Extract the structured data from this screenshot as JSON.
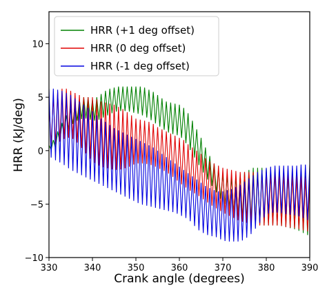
{
  "chart_data": {
    "type": "line",
    "title": "",
    "xlabel": "Crank angle (degrees)",
    "ylabel": "HRR (kJ/deg)",
    "xlim": [
      330,
      390
    ],
    "ylim": [
      -10,
      13
    ],
    "xticks": [
      330,
      340,
      350,
      360,
      370,
      380,
      390
    ],
    "yticks": [
      -10,
      -5,
      0,
      5,
      10
    ],
    "grid": false,
    "legend_position": "top-left",
    "series": [
      {
        "name": "HRR (+1 deg offset)",
        "color": "#008000",
        "x": [
          330,
          331,
          332,
          333,
          334,
          335,
          336,
          337,
          338,
          339,
          340,
          341,
          342,
          343,
          344,
          345,
          346,
          347,
          348,
          349,
          350,
          351,
          352,
          353,
          354,
          355,
          356,
          357,
          358,
          359,
          360,
          361,
          362,
          363,
          364,
          365,
          366,
          367,
          368,
          369,
          370,
          371,
          372,
          373,
          374,
          375,
          376,
          377,
          378,
          379,
          380,
          381,
          382,
          383,
          384,
          385,
          386,
          387,
          388,
          389,
          390
        ],
        "upper": [
          0.5,
          1.0,
          1.8,
          2.6,
          3.3,
          3.9,
          4.4,
          4.8,
          5.0,
          5.0,
          4.8,
          5.0,
          5.3,
          5.6,
          5.8,
          5.9,
          6.0,
          6.0,
          6.0,
          6.0,
          6.0,
          6.0,
          5.9,
          5.7,
          5.5,
          5.2,
          4.9,
          4.6,
          4.5,
          4.4,
          4.3,
          4.0,
          3.5,
          2.8,
          2.0,
          1.2,
          0.3,
          -0.5,
          -1.2,
          -1.8,
          -2.2,
          -2.4,
          -2.5,
          -2.4,
          -2.2,
          -2.0,
          -1.8,
          -1.6,
          -1.6,
          -1.6,
          -1.7,
          -1.8,
          -1.8,
          -1.8,
          -1.8,
          -1.9,
          -1.9,
          -2.0,
          -2.1,
          -2.3,
          -2.5
        ],
        "lower": [
          0.2,
          0.0,
          0.5,
          1.2,
          1.8,
          2.3,
          2.7,
          2.9,
          3.0,
          3.0,
          2.8,
          2.8,
          3.0,
          3.2,
          3.4,
          3.6,
          3.7,
          3.7,
          3.7,
          3.6,
          3.5,
          3.4,
          3.2,
          3.0,
          2.7,
          2.4,
          2.1,
          1.8,
          1.6,
          1.5,
          1.4,
          1.0,
          0.4,
          -0.3,
          -1.0,
          -1.7,
          -2.4,
          -3.0,
          -3.6,
          -4.2,
          -4.8,
          -5.2,
          -5.6,
          -6.0,
          -6.3,
          -6.5,
          -6.6,
          -6.8,
          -6.9,
          -7.0,
          -7.0,
          -7.0,
          -7.0,
          -7.0,
          -7.1,
          -7.2,
          -7.3,
          -7.4,
          -7.6,
          -7.8,
          -8.0
        ]
      },
      {
        "name": "HRR (0 deg offset)",
        "color": "#e00000",
        "x": [
          330,
          331,
          332,
          333,
          334,
          335,
          336,
          337,
          338,
          339,
          340,
          341,
          342,
          343,
          344,
          345,
          346,
          347,
          348,
          349,
          350,
          351,
          352,
          353,
          354,
          355,
          356,
          357,
          358,
          359,
          360,
          361,
          362,
          363,
          364,
          365,
          366,
          367,
          368,
          369,
          370,
          371,
          372,
          373,
          374,
          375,
          376,
          377,
          378,
          379,
          380,
          381,
          382,
          383,
          384,
          385,
          386,
          387,
          388,
          389,
          390
        ],
        "upper": [
          4.5,
          5.0,
          5.5,
          5.8,
          5.8,
          5.6,
          5.4,
          5.2,
          5.0,
          5.0,
          5.0,
          4.8,
          4.6,
          4.5,
          4.4,
          4.3,
          4.1,
          3.9,
          3.6,
          3.3,
          3.0,
          2.9,
          2.8,
          2.7,
          2.5,
          2.2,
          2.0,
          1.8,
          1.6,
          1.4,
          1.2,
          1.0,
          0.6,
          0.3,
          0.0,
          -0.3,
          -0.7,
          -1.0,
          -1.2,
          -1.4,
          -1.6,
          -1.7,
          -1.8,
          -1.9,
          -2.0,
          -2.0,
          -2.0,
          -2.0,
          -2.0,
          -2.0,
          -2.0,
          -2.0,
          -2.0,
          -2.0,
          -2.0,
          -2.1,
          -2.2,
          -2.3,
          -2.4,
          -2.5,
          -2.6
        ],
        "lower": [
          0.8,
          0.5,
          0.7,
          1.0,
          1.2,
          1.2,
          1.0,
          0.5,
          0.0,
          -0.5,
          -1.0,
          -1.3,
          -1.5,
          -1.6,
          -1.7,
          -1.8,
          -1.8,
          -1.7,
          -1.6,
          -1.4,
          -1.2,
          -1.2,
          -1.2,
          -1.3,
          -1.4,
          -1.6,
          -1.8,
          -2.0,
          -2.3,
          -2.6,
          -3.0,
          -3.3,
          -3.6,
          -3.9,
          -4.1,
          -4.4,
          -4.7,
          -5.0,
          -5.3,
          -5.5,
          -5.8,
          -6.0,
          -6.2,
          -6.4,
          -6.6,
          -6.7,
          -6.8,
          -6.9,
          -7.0,
          -7.0,
          -7.0,
          -7.0,
          -7.0,
          -7.0,
          -7.1,
          -7.2,
          -7.2,
          -7.3,
          -7.4,
          -7.5,
          -7.6
        ]
      },
      {
        "name": "HRR (-1 deg offset)",
        "color": "#0000e0",
        "x": [
          330,
          331,
          332,
          333,
          334,
          335,
          336,
          337,
          338,
          339,
          340,
          341,
          342,
          343,
          344,
          345,
          346,
          347,
          348,
          349,
          350,
          351,
          352,
          353,
          354,
          355,
          356,
          357,
          358,
          359,
          360,
          361,
          362,
          363,
          364,
          365,
          366,
          367,
          368,
          369,
          370,
          371,
          372,
          373,
          374,
          375,
          376,
          377,
          378,
          379,
          380,
          381,
          382,
          383,
          384,
          385,
          386,
          387,
          388,
          389,
          390
        ],
        "upper": [
          5.8,
          5.8,
          5.7,
          5.6,
          5.4,
          5.2,
          4.9,
          4.6,
          4.3,
          4.0,
          3.7,
          3.3,
          3.0,
          2.7,
          2.4,
          2.1,
          1.9,
          1.7,
          1.5,
          1.3,
          1.1,
          0.9,
          0.7,
          0.5,
          0.3,
          0.0,
          -0.3,
          -0.6,
          -0.9,
          -1.2,
          -1.5,
          -1.8,
          -2.1,
          -2.4,
          -2.7,
          -3.0,
          -3.3,
          -3.5,
          -3.7,
          -3.8,
          -3.8,
          -3.7,
          -3.6,
          -3.4,
          -3.2,
          -2.9,
          -2.6,
          -2.3,
          -2.0,
          -1.8,
          -1.6,
          -1.5,
          -1.4,
          -1.4,
          -1.4,
          -1.4,
          -1.4,
          -1.4,
          -1.3,
          -1.3,
          -1.3
        ],
        "lower": [
          -0.5,
          -0.8,
          -1.0,
          -1.2,
          -1.5,
          -1.8,
          -2.0,
          -2.2,
          -2.4,
          -2.6,
          -2.8,
          -3.0,
          -3.2,
          -3.4,
          -3.6,
          -3.8,
          -4.0,
          -4.2,
          -4.4,
          -4.6,
          -4.8,
          -5.0,
          -5.1,
          -5.2,
          -5.3,
          -5.4,
          -5.5,
          -5.6,
          -5.7,
          -5.8,
          -6.0,
          -6.2,
          -6.4,
          -6.8,
          -7.3,
          -7.6,
          -7.8,
          -8.0,
          -8.0,
          -8.2,
          -8.4,
          -8.5,
          -8.5,
          -8.5,
          -8.5,
          -8.3,
          -8.0,
          -7.6,
          -7.0,
          -6.5,
          -6.0,
          -5.8,
          -5.8,
          -5.8,
          -5.9,
          -6.0,
          -6.0,
          -6.1,
          -6.2,
          -6.4,
          -6.6
        ]
      }
    ]
  }
}
